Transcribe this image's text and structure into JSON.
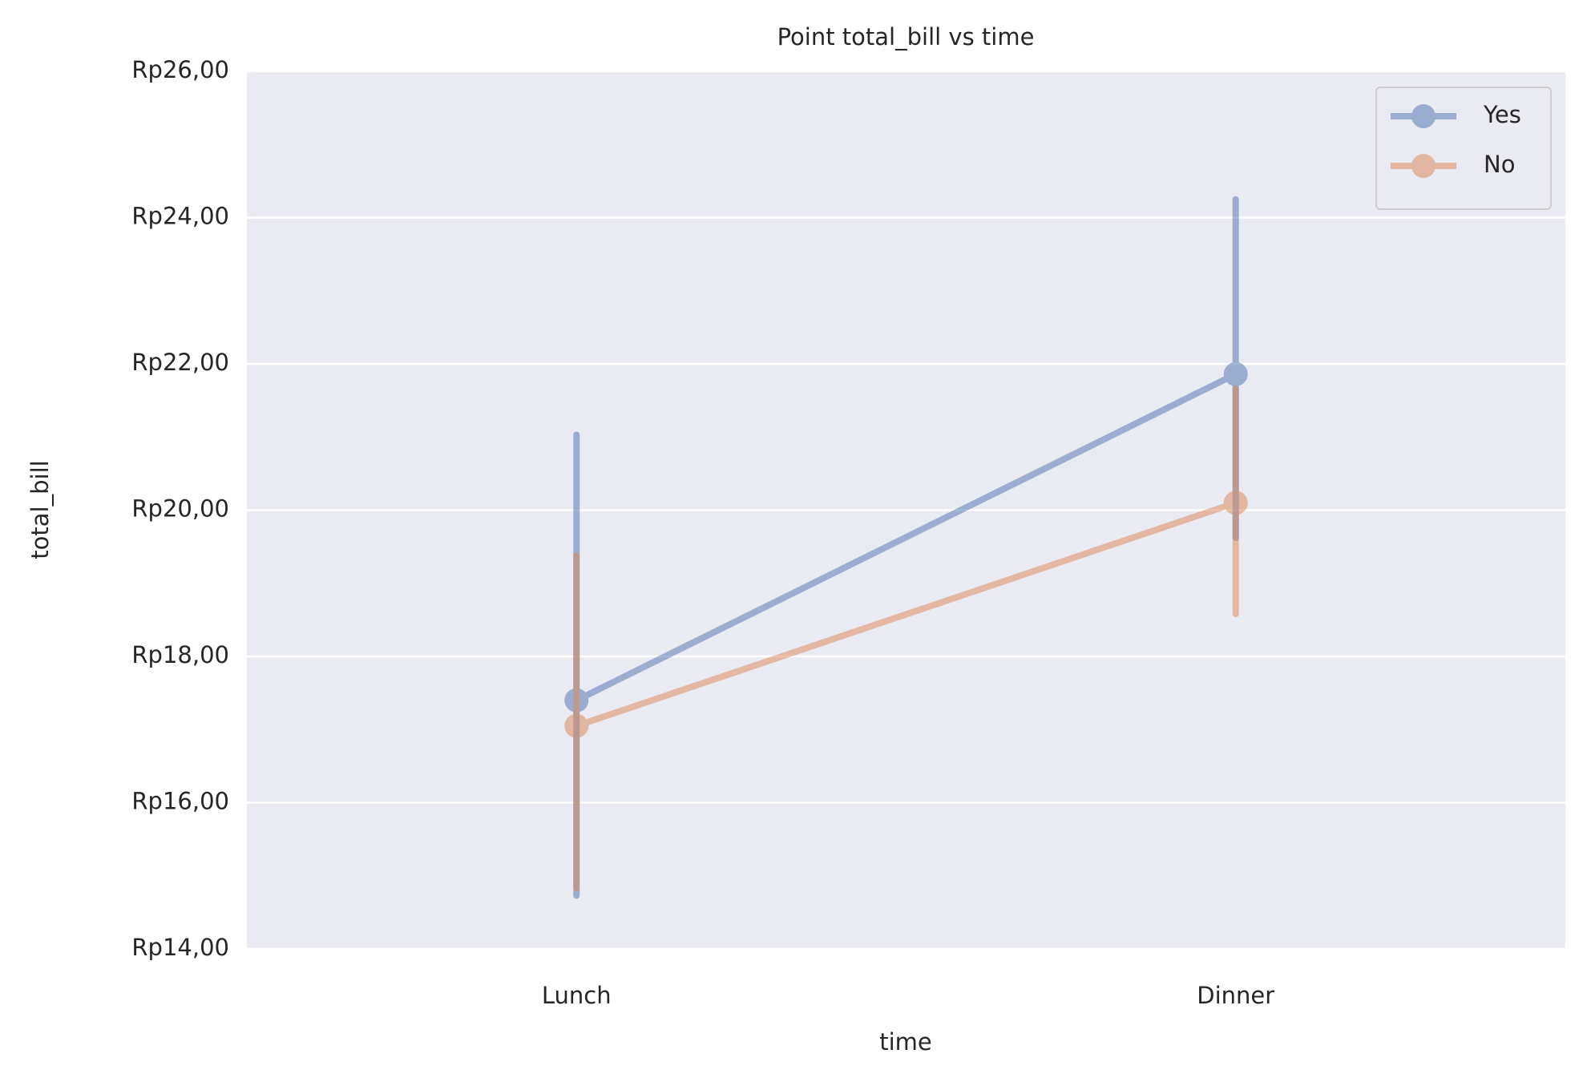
{
  "chart_data": {
    "type": "point",
    "title": "Point total_bill vs time",
    "x_label": "time",
    "y_label": "total_bill",
    "categories": [
      "Lunch",
      "Dinner"
    ],
    "series": [
      {
        "name": "Yes",
        "color": "#4c72b0",
        "values": [
          17.4,
          21.86
        ],
        "ci_low": [
          14.73,
          19.62
        ],
        "ci_high": [
          21.03,
          24.25
        ]
      },
      {
        "name": "No",
        "color": "#dd8452",
        "values": [
          17.05,
          20.1
        ],
        "ci_low": [
          14.83,
          18.58
        ],
        "ci_high": [
          19.38,
          21.66
        ]
      }
    ],
    "ylim": [
      14,
      26
    ],
    "yticks": [
      {
        "value": 14,
        "label": "Rp14,00"
      },
      {
        "value": 16,
        "label": "Rp16,00"
      },
      {
        "value": 18,
        "label": "Rp18,00"
      },
      {
        "value": 20,
        "label": "Rp20,00"
      },
      {
        "value": 22,
        "label": "Rp22,00"
      },
      {
        "value": 24,
        "label": "Rp24,00"
      },
      {
        "value": 26,
        "label": "Rp26,00"
      }
    ],
    "grid": true,
    "legend": "upper right"
  }
}
